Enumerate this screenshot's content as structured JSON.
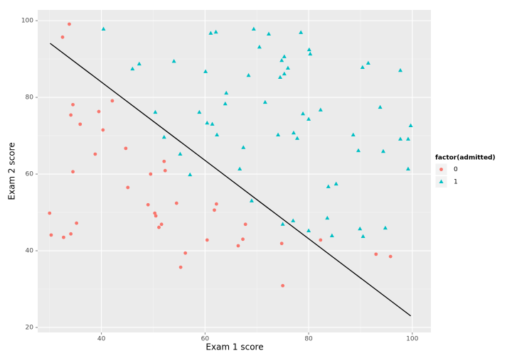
{
  "chart_data": {
    "type": "scatter",
    "x_label": "Exam 1 score",
    "y_label": "Exam 2 score",
    "legend_title": "factor(admitted)",
    "xlim": [
      27.7,
      103.6
    ],
    "ylim": [
      18.7,
      102.8
    ],
    "xticks": [
      40,
      60,
      80,
      100
    ],
    "yticks": [
      20,
      40,
      60,
      80,
      100
    ],
    "grid": true,
    "legend_position": "right",
    "series": [
      {
        "name": "0",
        "color": "#F8766D",
        "marker": "circle",
        "x": [
          33.8,
          32.5,
          30.0,
          30.3,
          32.7,
          34.1,
          35.2,
          34.1,
          34.5,
          35.9,
          34.5,
          39.5,
          40.3,
          42.1,
          38.8,
          44.7,
          45.1,
          49.5,
          49.0,
          50.3,
          50.5,
          51.1,
          51.6,
          52.1,
          52.3,
          54.5,
          56.2,
          55.3,
          60.4,
          61.8,
          62.2,
          66.4,
          67.3,
          67.8,
          74.8,
          75.0,
          82.3,
          93.0,
          95.8
        ],
        "values": [
          99.1,
          95.7,
          49.8,
          44.1,
          43.5,
          44.4,
          47.2,
          75.4,
          78.1,
          73.0,
          60.6,
          76.3,
          71.5,
          79.1,
          65.2,
          66.7,
          56.5,
          60.0,
          52.0,
          49.8,
          49.1,
          46.1,
          46.9,
          63.3,
          60.9,
          52.4,
          39.4,
          35.7,
          42.8,
          50.6,
          52.2,
          41.3,
          43.0,
          46.9,
          41.9,
          30.9,
          42.8,
          39.1,
          38.5
        ]
      },
      {
        "name": "1",
        "color": "#00BFC4",
        "marker": "triangle",
        "x": [
          40.4,
          46.0,
          47.3,
          54.0,
          50.4,
          52.1,
          55.2,
          57.1,
          58.9,
          60.1,
          61.1,
          62.1,
          60.4,
          61.4,
          62.3,
          64.1,
          63.9,
          67.4,
          66.7,
          68.4,
          69.0,
          69.4,
          70.5,
          72.3,
          71.6,
          74.1,
          74.5,
          74.8,
          75.3,
          75.3,
          76.0,
          75.0,
          77.0,
          77.1,
          77.8,
          78.5,
          78.9,
          80.0,
          80.1,
          80.3,
          80.0,
          82.3,
          83.8,
          85.3,
          83.6,
          84.5,
          88.6,
          89.6,
          89.9,
          90.4,
          90.5,
          91.5,
          93.8,
          94.4,
          94.8,
          97.7,
          97.7,
          99.2,
          99.2,
          99.7
        ],
        "values": [
          97.8,
          87.4,
          88.7,
          89.4,
          76.1,
          69.6,
          65.2,
          59.8,
          76.1,
          86.7,
          96.7,
          97.0,
          73.3,
          73.0,
          70.2,
          81.1,
          78.3,
          66.9,
          61.3,
          85.7,
          53.0,
          97.8,
          93.1,
          96.5,
          78.7,
          70.2,
          85.2,
          89.6,
          90.6,
          86.1,
          87.6,
          46.9,
          47.8,
          70.7,
          69.3,
          96.9,
          75.7,
          74.3,
          92.4,
          91.3,
          45.2,
          76.7,
          56.7,
          57.4,
          48.5,
          43.9,
          70.2,
          66.1,
          45.7,
          87.8,
          43.7,
          88.9,
          77.4,
          65.9,
          45.9,
          87.0,
          69.1,
          69.1,
          61.3,
          72.6
        ]
      }
    ],
    "boundary_line": {
      "color": "#000000",
      "x": [
        30.1,
        99.7
      ],
      "values": [
        94.1,
        23.0
      ]
    }
  }
}
